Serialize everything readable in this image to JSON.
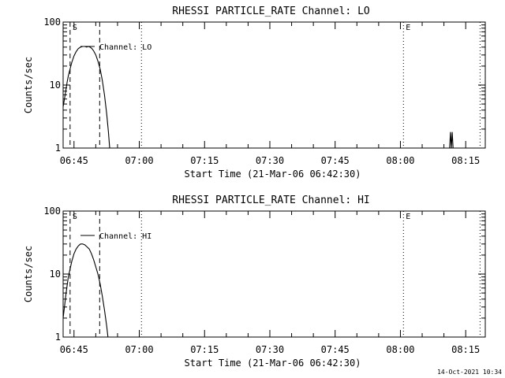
{
  "chart_data": [
    {
      "type": "line",
      "title": "RHESSI PARTICLE_RATE Channel: LO",
      "xlabel": "Start Time (21-Mar-06 06:42:30)",
      "ylabel": "Counts/sec",
      "yscale": "log",
      "ylim": [
        1,
        100
      ],
      "xlim_minutes_after_start": [
        0,
        97
      ],
      "x_tick_labels": [
        "06:45",
        "07:00",
        "07:15",
        "07:30",
        "07:45",
        "08:00",
        "08:15"
      ],
      "y_tick_labels": [
        "1",
        "10",
        "100"
      ],
      "legend": "Channel: LO",
      "markers": [
        {
          "label": "S",
          "minute": 1.6,
          "style": "dashed"
        },
        {
          "label": "",
          "minute": 8.4,
          "style": "dashed"
        },
        {
          "label": "",
          "minute": 18.0,
          "style": "dotted"
        },
        {
          "label": "E",
          "minute": 78.2,
          "style": "dotted"
        },
        {
          "label": "",
          "minute": 95.8,
          "style": "dotted"
        }
      ],
      "series": [
        {
          "values": [
            [
              0.0,
              4.5
            ],
            [
              0.3,
              6
            ],
            [
              0.6,
              8
            ],
            [
              0.9,
              11
            ],
            [
              1.2,
              14
            ],
            [
              1.6,
              18
            ],
            [
              2.0,
              23
            ],
            [
              2.5,
              29
            ],
            [
              3.0,
              34
            ],
            [
              3.5,
              38
            ],
            [
              4.0,
              40
            ],
            [
              4.5,
              41
            ],
            [
              5.0,
              41
            ],
            [
              5.4,
              40
            ],
            [
              5.8,
              41
            ],
            [
              6.2,
              40
            ],
            [
              6.6,
              38
            ],
            [
              7.0,
              35
            ],
            [
              7.5,
              30
            ],
            [
              8.0,
              24
            ],
            [
              8.5,
              18
            ],
            [
              9.0,
              12
            ],
            [
              9.5,
              7
            ],
            [
              10.0,
              3.5
            ],
            [
              10.4,
              1.8
            ],
            [
              10.7,
              1
            ]
          ]
        },
        {
          "values": [
            [
              88.8,
              1
            ],
            [
              89.0,
              1.8
            ],
            [
              89.2,
              1
            ],
            [
              89.4,
              1.8
            ],
            [
              89.6,
              1
            ]
          ]
        }
      ]
    },
    {
      "type": "line",
      "title": "RHESSI PARTICLE_RATE Channel: HI",
      "xlabel": "Start Time (21-Mar-06 06:42:30)",
      "ylabel": "Counts/sec",
      "yscale": "log",
      "ylim": [
        1,
        100
      ],
      "xlim_minutes_after_start": [
        0,
        97
      ],
      "x_tick_labels": [
        "06:45",
        "07:00",
        "07:15",
        "07:30",
        "07:45",
        "08:00",
        "08:15"
      ],
      "y_tick_labels": [
        "1",
        "10",
        "100"
      ],
      "legend": "Channel: HI",
      "markers": [
        {
          "label": "S",
          "minute": 1.6,
          "style": "dashed"
        },
        {
          "label": "",
          "minute": 8.4,
          "style": "dashed"
        },
        {
          "label": "",
          "minute": 18.0,
          "style": "dotted"
        },
        {
          "label": "E",
          "minute": 78.2,
          "style": "dotted"
        },
        {
          "label": "",
          "minute": 95.8,
          "style": "dotted"
        }
      ],
      "series": [
        {
          "values": [
            [
              0.0,
              2
            ],
            [
              0.3,
              3
            ],
            [
              0.6,
              4.5
            ],
            [
              0.9,
              6.5
            ],
            [
              1.2,
              9
            ],
            [
              1.6,
              12
            ],
            [
              2.0,
              16
            ],
            [
              2.5,
              21
            ],
            [
              3.0,
              25
            ],
            [
              3.5,
              28
            ],
            [
              4.0,
              30
            ],
            [
              4.5,
              30
            ],
            [
              5.0,
              29
            ],
            [
              5.5,
              27
            ],
            [
              6.0,
              25
            ],
            [
              6.5,
              21
            ],
            [
              7.0,
              17
            ],
            [
              7.5,
              13
            ],
            [
              8.0,
              10
            ],
            [
              8.5,
              7
            ],
            [
              9.0,
              4.5
            ],
            [
              9.5,
              2.7
            ],
            [
              10.0,
              1.5
            ],
            [
              10.3,
              1
            ]
          ]
        }
      ]
    }
  ],
  "footer": {
    "timestamp": "14-Oct-2021 10:34"
  }
}
